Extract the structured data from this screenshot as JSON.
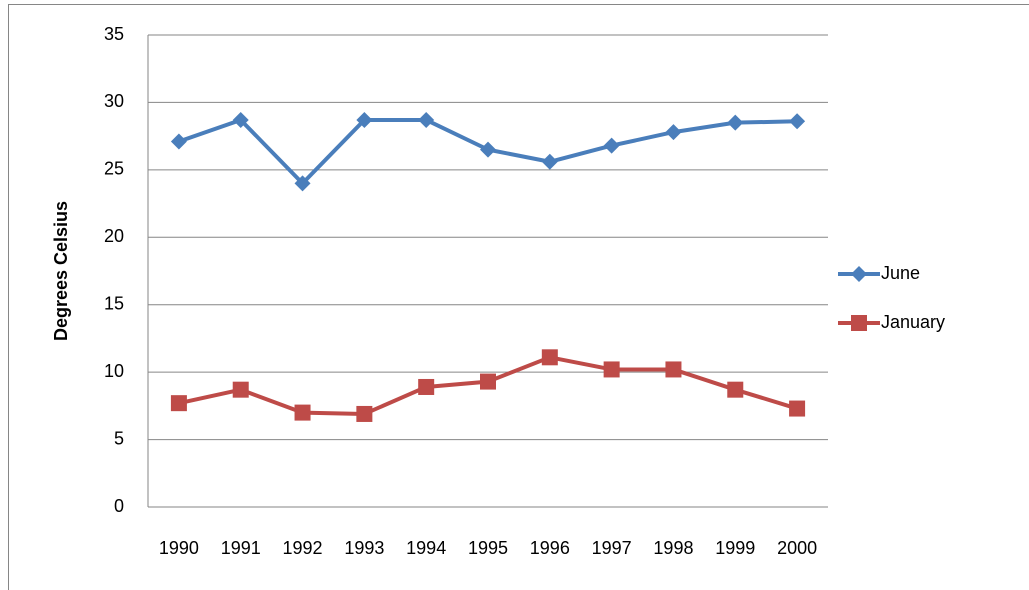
{
  "chart_data": {
    "type": "line",
    "y_label": "Degrees Celsius",
    "categories": [
      "1990",
      "1991",
      "1992",
      "1993",
      "1994",
      "1995",
      "1996",
      "1997",
      "1998",
      "1999",
      "2000"
    ],
    "series": [
      {
        "name": "June",
        "color": "#4a7ebb",
        "marker": "diamond",
        "values": [
          27.1,
          28.7,
          24.0,
          28.7,
          28.7,
          26.5,
          25.6,
          26.8,
          27.8,
          28.5,
          28.6
        ]
      },
      {
        "name": "January",
        "color": "#be4b48",
        "marker": "square",
        "values": [
          7.7,
          8.7,
          7.0,
          6.9,
          8.9,
          9.3,
          11.1,
          10.2,
          10.2,
          8.7,
          7.3
        ]
      }
    ],
    "ylim": [
      0,
      35
    ],
    "yticks": [
      0,
      5,
      10,
      15,
      20,
      25,
      30,
      35
    ],
    "grid": true,
    "legend": "right"
  }
}
